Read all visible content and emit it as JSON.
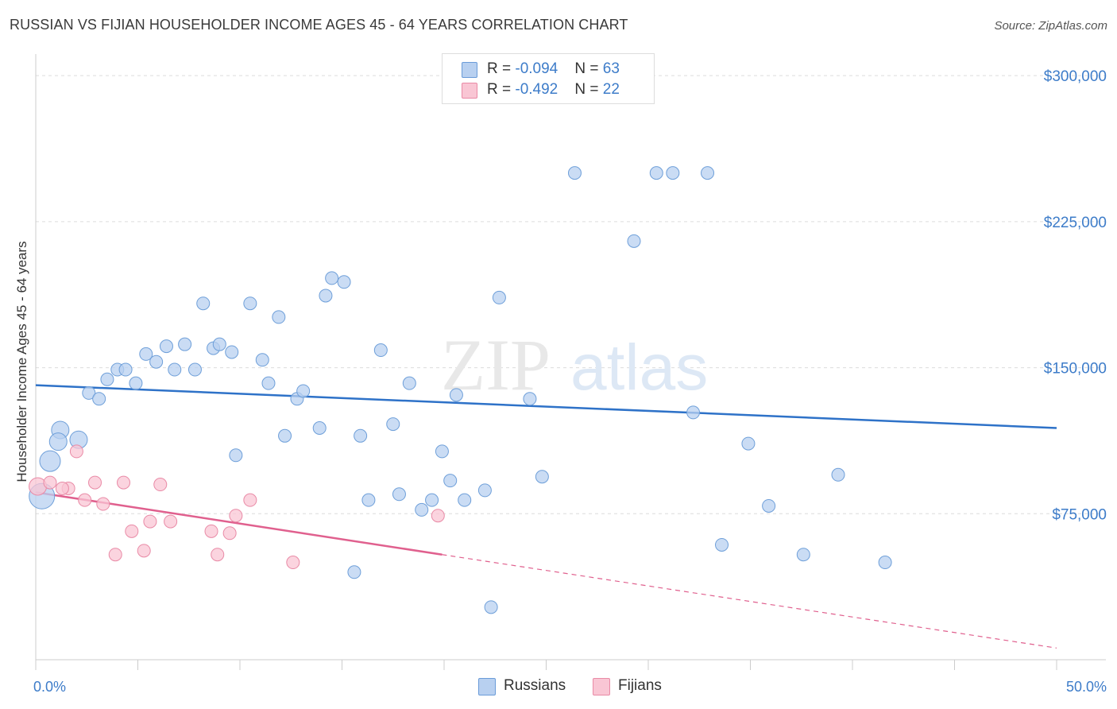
{
  "header": {
    "title": "RUSSIAN VS FIJIAN HOUSEHOLDER INCOME AGES 45 - 64 YEARS CORRELATION CHART",
    "source": "Source: ZipAtlas.com"
  },
  "watermark": {
    "zip": "ZIP",
    "atlas": "atlas"
  },
  "legend": {
    "rows": [
      {
        "r_label": "R = ",
        "r_value": "-0.094",
        "n_label": "N = ",
        "n_value": "63",
        "color": "#b8d0f0",
        "border": "#6a9bd8"
      },
      {
        "r_label": "R = ",
        "r_value": "-0.492",
        "n_label": "N = ",
        "n_value": "22",
        "color": "#f9c6d4",
        "border": "#e98aa6"
      }
    ]
  },
  "bottom_legend": {
    "russians": "Russians",
    "fijians": "Fijians"
  },
  "colors": {
    "russian_fill": "#b8d0f0",
    "russian_stroke": "#6e9fd9",
    "russian_line": "#2e72c8",
    "fijian_fill": "#f9c6d4",
    "fijian_stroke": "#e98aa6",
    "fijian_line": "#e0608e",
    "grid": "#dcdcdc",
    "axis_text": "#3d7cc9"
  },
  "chart_data": {
    "type": "scatter",
    "title": "RUSSIAN VS FIJIAN HOUSEHOLDER INCOME AGES 45 - 64 YEARS CORRELATION CHART",
    "xlabel": "",
    "ylabel": "Householder Income Ages 45 - 64 years",
    "xlim": [
      0,
      50
    ],
    "ylim": [
      0,
      307000
    ],
    "x_tick_labels": [
      "0.0%",
      "50.0%"
    ],
    "y_ticks": [
      75000,
      150000,
      225000,
      300000
    ],
    "y_tick_labels": [
      "$75,000",
      "$150,000",
      "$225,000",
      "$300,000"
    ],
    "grid": true,
    "legend_position": "top-center",
    "series": [
      {
        "name": "Russians",
        "r": -0.094,
        "n": 63,
        "trend": {
          "x": [
            0,
            50
          ],
          "y": [
            141000,
            119000
          ]
        },
        "points": [
          {
            "x": 0.3,
            "y": 84000,
            "s": "xl"
          },
          {
            "x": 0.7,
            "y": 102000,
            "s": "l"
          },
          {
            "x": 1.2,
            "y": 118000,
            "s": "m"
          },
          {
            "x": 1.1,
            "y": 112000,
            "s": "m"
          },
          {
            "x": 2.1,
            "y": 113000,
            "s": "m"
          },
          {
            "x": 2.6,
            "y": 137000,
            "s": "s"
          },
          {
            "x": 3.1,
            "y": 134000,
            "s": "s"
          },
          {
            "x": 3.5,
            "y": 144000,
            "s": "s"
          },
          {
            "x": 4.0,
            "y": 149000,
            "s": "s"
          },
          {
            "x": 4.4,
            "y": 149000,
            "s": "s"
          },
          {
            "x": 4.9,
            "y": 142000,
            "s": "s"
          },
          {
            "x": 5.4,
            "y": 157000,
            "s": "s"
          },
          {
            "x": 5.9,
            "y": 153000,
            "s": "s"
          },
          {
            "x": 6.4,
            "y": 161000,
            "s": "s"
          },
          {
            "x": 6.8,
            "y": 149000,
            "s": "s"
          },
          {
            "x": 7.3,
            "y": 162000,
            "s": "s"
          },
          {
            "x": 7.8,
            "y": 149000,
            "s": "s"
          },
          {
            "x": 8.2,
            "y": 183000,
            "s": "s"
          },
          {
            "x": 8.7,
            "y": 160000,
            "s": "s"
          },
          {
            "x": 9.0,
            "y": 162000,
            "s": "s"
          },
          {
            "x": 9.6,
            "y": 158000,
            "s": "s"
          },
          {
            "x": 9.8,
            "y": 105000,
            "s": "s"
          },
          {
            "x": 10.5,
            "y": 183000,
            "s": "s"
          },
          {
            "x": 11.1,
            "y": 154000,
            "s": "s"
          },
          {
            "x": 11.4,
            "y": 142000,
            "s": "s"
          },
          {
            "x": 11.9,
            "y": 176000,
            "s": "s"
          },
          {
            "x": 12.2,
            "y": 115000,
            "s": "s"
          },
          {
            "x": 12.8,
            "y": 134000,
            "s": "s"
          },
          {
            "x": 13.1,
            "y": 138000,
            "s": "s"
          },
          {
            "x": 13.9,
            "y": 119000,
            "s": "s"
          },
          {
            "x": 14.2,
            "y": 187000,
            "s": "s"
          },
          {
            "x": 14.5,
            "y": 196000,
            "s": "s"
          },
          {
            "x": 15.1,
            "y": 194000,
            "s": "s"
          },
          {
            "x": 15.6,
            "y": 45000,
            "s": "s"
          },
          {
            "x": 15.9,
            "y": 115000,
            "s": "s"
          },
          {
            "x": 16.3,
            "y": 82000,
            "s": "s"
          },
          {
            "x": 16.9,
            "y": 159000,
            "s": "s"
          },
          {
            "x": 17.5,
            "y": 121000,
            "s": "s"
          },
          {
            "x": 17.8,
            "y": 85000,
            "s": "s"
          },
          {
            "x": 18.3,
            "y": 142000,
            "s": "s"
          },
          {
            "x": 18.9,
            "y": 77000,
            "s": "s"
          },
          {
            "x": 19.4,
            "y": 82000,
            "s": "s"
          },
          {
            "x": 19.9,
            "y": 107000,
            "s": "s"
          },
          {
            "x": 20.3,
            "y": 92000,
            "s": "s"
          },
          {
            "x": 20.6,
            "y": 136000,
            "s": "s"
          },
          {
            "x": 21.0,
            "y": 82000,
            "s": "s"
          },
          {
            "x": 22.0,
            "y": 87000,
            "s": "s"
          },
          {
            "x": 22.3,
            "y": 27000,
            "s": "s"
          },
          {
            "x": 22.7,
            "y": 186000,
            "s": "s"
          },
          {
            "x": 24.2,
            "y": 134000,
            "s": "s"
          },
          {
            "x": 24.8,
            "y": 94000,
            "s": "s"
          },
          {
            "x": 26.4,
            "y": 250000,
            "s": "s"
          },
          {
            "x": 29.3,
            "y": 215000,
            "s": "s"
          },
          {
            "x": 30.4,
            "y": 250000,
            "s": "s"
          },
          {
            "x": 31.2,
            "y": 250000,
            "s": "s"
          },
          {
            "x": 32.2,
            "y": 127000,
            "s": "s"
          },
          {
            "x": 32.9,
            "y": 250000,
            "s": "s"
          },
          {
            "x": 33.6,
            "y": 59000,
            "s": "s"
          },
          {
            "x": 34.9,
            "y": 111000,
            "s": "s"
          },
          {
            "x": 35.9,
            "y": 79000,
            "s": "s"
          },
          {
            "x": 37.6,
            "y": 54000,
            "s": "s"
          },
          {
            "x": 39.3,
            "y": 95000,
            "s": "s"
          },
          {
            "x": 41.6,
            "y": 50000,
            "s": "s"
          }
        ]
      },
      {
        "name": "Fijians",
        "r": -0.492,
        "n": 22,
        "trend": {
          "x": [
            0,
            19.9
          ],
          "y": [
            86000,
            54000
          ],
          "x_dashed_to": 50,
          "y_dashed_to": 6000
        },
        "points": [
          {
            "x": 0.1,
            "y": 89000,
            "s": "m"
          },
          {
            "x": 0.7,
            "y": 91000,
            "s": "s"
          },
          {
            "x": 1.6,
            "y": 88000,
            "s": "s"
          },
          {
            "x": 2.0,
            "y": 107000,
            "s": "s"
          },
          {
            "x": 2.4,
            "y": 82000,
            "s": "s"
          },
          {
            "x": 2.9,
            "y": 91000,
            "s": "s"
          },
          {
            "x": 3.3,
            "y": 80000,
            "s": "s"
          },
          {
            "x": 3.9,
            "y": 54000,
            "s": "s"
          },
          {
            "x": 4.3,
            "y": 91000,
            "s": "s"
          },
          {
            "x": 4.7,
            "y": 66000,
            "s": "s"
          },
          {
            "x": 5.3,
            "y": 56000,
            "s": "s"
          },
          {
            "x": 5.6,
            "y": 71000,
            "s": "s"
          },
          {
            "x": 6.1,
            "y": 90000,
            "s": "s"
          },
          {
            "x": 6.6,
            "y": 71000,
            "s": "s"
          },
          {
            "x": 8.6,
            "y": 66000,
            "s": "s"
          },
          {
            "x": 8.9,
            "y": 54000,
            "s": "s"
          },
          {
            "x": 9.5,
            "y": 65000,
            "s": "s"
          },
          {
            "x": 9.8,
            "y": 74000,
            "s": "s"
          },
          {
            "x": 10.5,
            "y": 82000,
            "s": "s"
          },
          {
            "x": 12.6,
            "y": 50000,
            "s": "s"
          },
          {
            "x": 19.7,
            "y": 74000,
            "s": "s"
          },
          {
            "x": 1.3,
            "y": 88000,
            "s": "s"
          }
        ]
      }
    ]
  }
}
